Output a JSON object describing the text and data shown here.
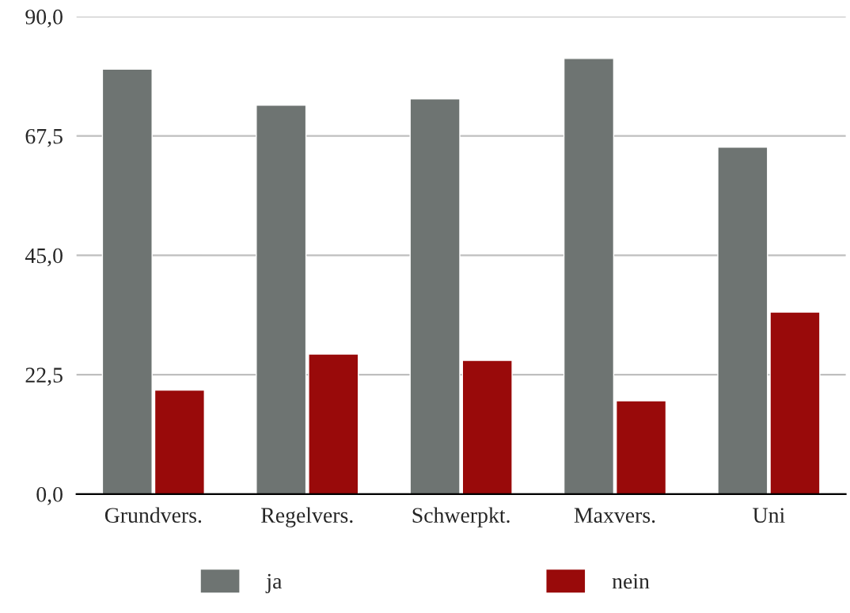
{
  "chart_data": {
    "type": "bar",
    "categories": [
      "Grundvers.",
      "Regelvers.",
      "Schwerpkt.",
      "Maxvers.",
      "Uni"
    ],
    "series": [
      {
        "name": "ja",
        "color": "#6e7472",
        "values": [
          80.1,
          73.3,
          74.5,
          82.1,
          65.4
        ]
      },
      {
        "name": "nein",
        "color": "#990a0a",
        "values": [
          19.6,
          26.4,
          25.2,
          17.6,
          34.3
        ]
      }
    ],
    "ylim": [
      0,
      90
    ],
    "yticks": [
      {
        "value": 0,
        "label": "0,0"
      },
      {
        "value": 22.5,
        "label": "22,5"
      },
      {
        "value": 45,
        "label": "45,0"
      },
      {
        "value": 67.5,
        "label": "67,5"
      },
      {
        "value": 90,
        "label": "90,0"
      }
    ],
    "grid": "y",
    "legend": "bottom"
  }
}
